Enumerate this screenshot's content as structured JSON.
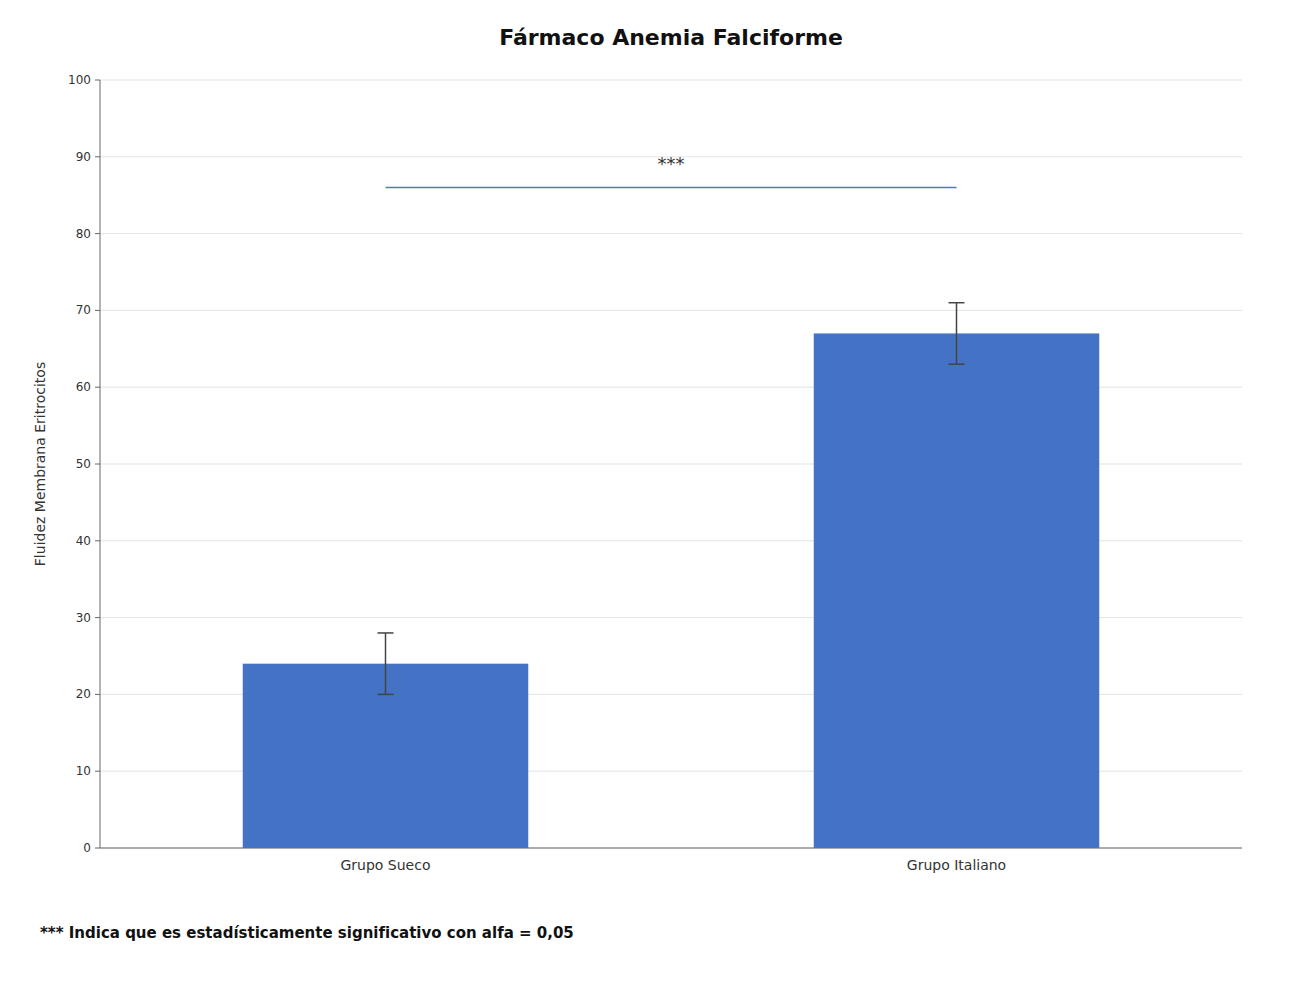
{
  "chart_data": {
    "type": "bar",
    "title": "Fármaco Anemia Falciforme",
    "categories": [
      "Grupo Sueco",
      "Grupo Italiano"
    ],
    "values": [
      24,
      67
    ],
    "errors": [
      4,
      4
    ],
    "color": "#4472C4",
    "ylabel": "Fluidez Membrana Eritrocitos",
    "ylim": [
      0,
      100
    ],
    "yticks": [
      0,
      10,
      20,
      30,
      40,
      50,
      60,
      70,
      80,
      90,
      100
    ],
    "grid": true,
    "annotations": [
      {
        "text": "***",
        "y": 88
      }
    ],
    "bracket_y": 86,
    "footnote": "*** Indica que es estadísticamente significativo con alfa = 0,05"
  }
}
